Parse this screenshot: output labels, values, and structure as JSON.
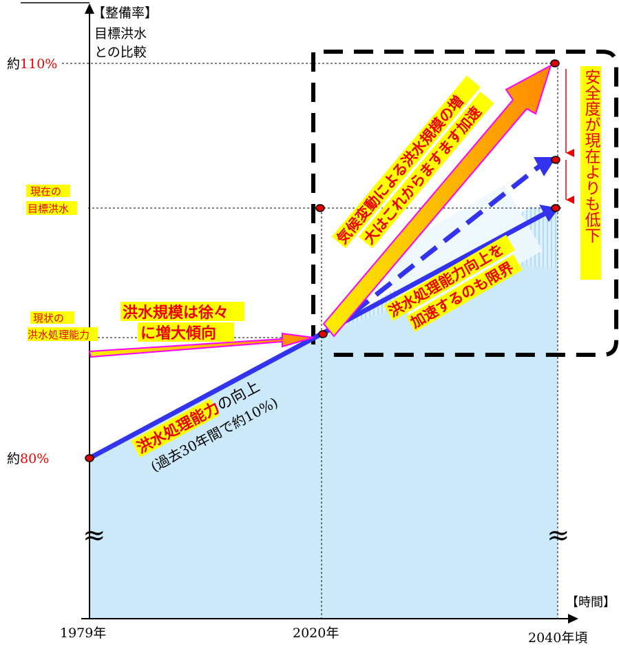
{
  "y_axis": {
    "title_line1": "【整備率】",
    "title_line2": "目標洪水",
    "title_line3": "との比較",
    "tick_110_prefix": "約",
    "tick_110_value": "110%",
    "tick_80_prefix": "約",
    "tick_80_value": "80%",
    "current_target_line1": "現在の",
    "current_target_line2": "目標洪水",
    "current_capacity_line1": "現状の",
    "current_capacity_line2": "洪水処理能力"
  },
  "x_axis": {
    "title": "【時間】",
    "tick_1979": "1979年",
    "tick_2020": "2020年",
    "tick_2040": "2040年頃"
  },
  "annotations": {
    "flood_gradual_line1": "洪水規模は徐々",
    "flood_gradual_line2": "に増大傾向",
    "capacity_improve_highlight": "洪水処理能力",
    "capacity_improve_rest": "の向上",
    "capacity_improve_note": "(過去30年間で約10%)",
    "climate_line1": "気候変動による洪水規模の増",
    "climate_line2": "大はこれからますます加速",
    "limit_line1": "洪水処理能力向上を",
    "limit_line2": "加速するのも限界",
    "safety_vertical": "安全度が現在よりも低下",
    "break_symbol": "≈"
  },
  "colors": {
    "fill_area": "#cce9fa",
    "blue_line": "#3333ee",
    "orange_arrow": "#ff9900",
    "magenta_outline": "#ff00ff",
    "yellow_highlight": "#ffff00",
    "red_text": "#ee0000",
    "dot_red": "#dd0000"
  }
}
